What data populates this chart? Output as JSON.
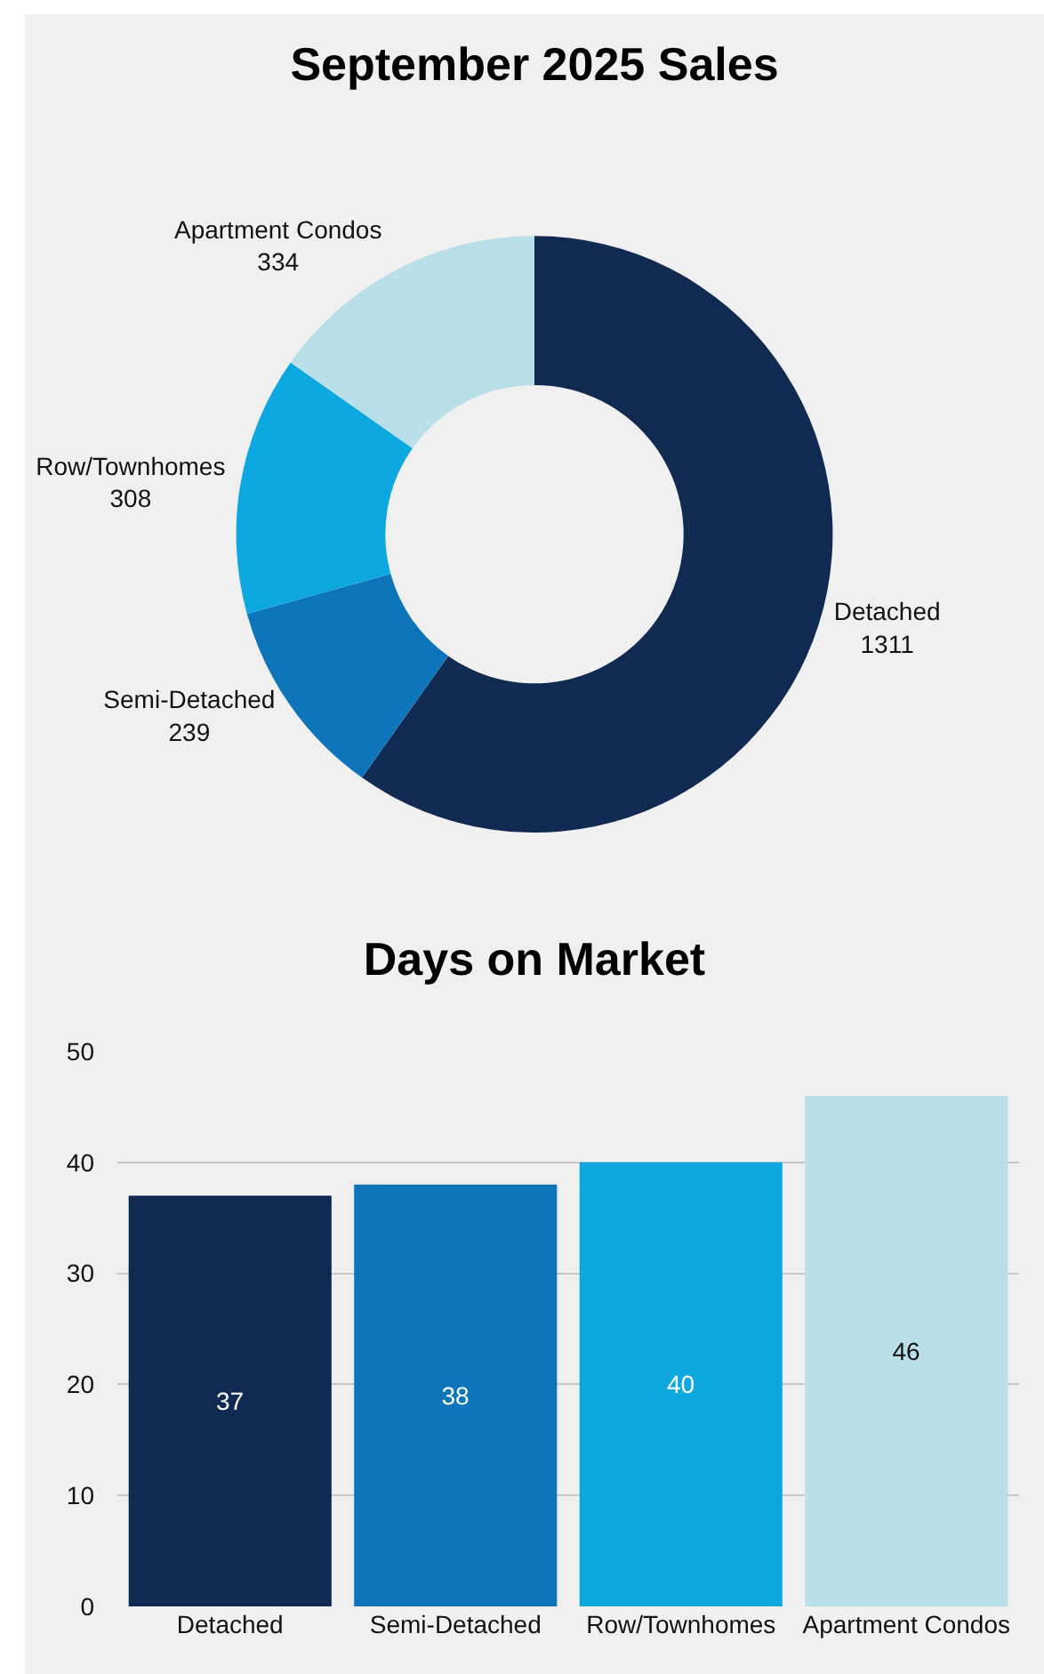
{
  "chart_data": [
    {
      "type": "donut",
      "title": "September 2025 Sales",
      "categories": [
        "Detached",
        "Semi-Detached",
        "Row/Townhomes",
        "Apartment Condos"
      ],
      "values": [
        1311,
        239,
        308,
        334
      ],
      "colors": [
        "#112a52",
        "#0e75ba",
        "#0ea8e0",
        "#b9dfe8"
      ],
      "data_labels": true,
      "legend": false
    },
    {
      "type": "bar",
      "title": "Days on Market",
      "categories": [
        "Detached",
        "Semi-Detached",
        "Row/Townhomes",
        "Apartment Condos"
      ],
      "values": [
        37,
        38,
        40,
        46
      ],
      "colors": [
        "#112a52",
        "#0e75ba",
        "#0ea8e0",
        "#b9dfe8"
      ],
      "ylim": [
        0,
        50
      ],
      "yticks": [
        0,
        10,
        20,
        30,
        40,
        50
      ],
      "grid": "y",
      "data_labels": true,
      "legend": false
    }
  ]
}
